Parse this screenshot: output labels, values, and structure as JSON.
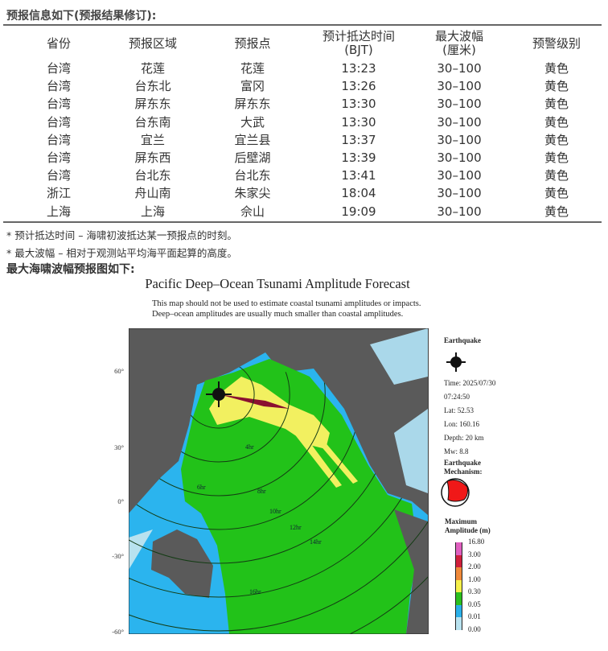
{
  "header": "预报信息如下(预报结果修订):",
  "table": {
    "columns": [
      [
        "省份",
        ""
      ],
      [
        "预报区域",
        ""
      ],
      [
        "预报点",
        ""
      ],
      [
        "预计抵达时间",
        "(BJT)"
      ],
      [
        "最大波幅",
        "(厘米)"
      ],
      [
        "预警级别",
        ""
      ]
    ],
    "rows": [
      [
        "台湾",
        "花莲",
        "花莲",
        "13:23",
        "30–100",
        "黄色"
      ],
      [
        "台湾",
        "台东北",
        "富冈",
        "13:26",
        "30–100",
        "黄色"
      ],
      [
        "台湾",
        "屏东东",
        "屏东东",
        "13:30",
        "30–100",
        "黄色"
      ],
      [
        "台湾",
        "台东南",
        "大武",
        "13:30",
        "30–100",
        "黄色"
      ],
      [
        "台湾",
        "宜兰",
        "宜兰县",
        "13:37",
        "30–100",
        "黄色"
      ],
      [
        "台湾",
        "屏东西",
        "后壁湖",
        "13:39",
        "30–100",
        "黄色"
      ],
      [
        "台湾",
        "台北东",
        "台北东",
        "13:41",
        "30–100",
        "黄色"
      ],
      [
        "浙江",
        "舟山南",
        "朱家尖",
        "18:04",
        "30–100",
        "黄色"
      ],
      [
        "上海",
        "上海",
        "佘山",
        "19:09",
        "30–100",
        "黄色"
      ]
    ]
  },
  "notes": [
    "* 预计抵达时间 – 海啸初波抵达某一预报点的时刻。",
    "* 最大波幅 – 相对于观测站平均海平面起算的高度。"
  ],
  "map_heading": "最大海啸波幅预报图如下:",
  "map": {
    "title": "Pacific Deep–Ocean Tsunami Amplitude Forecast",
    "subtitle": [
      "This map should not be used to estimate coastal tsunami amplitudes or impacts.",
      "Deep–ocean amplitudes are usually much smaller than coastal amplitudes."
    ],
    "lat_labels": [
      "60°",
      "30°",
      "0°",
      "-30°",
      "-60°"
    ],
    "contour_labels": [
      "4hr",
      "6hr",
      "8hr",
      "10hr",
      "12hr",
      "14hr",
      "16hr"
    ],
    "earthquake": {
      "label": "Earthquake",
      "time": "Time: 2025/07/30",
      "clock": "07:24:50",
      "lat": "Lat: 52.53",
      "lon": "Lon: 160.16",
      "depth": "Depth: 20 km",
      "mw": "Mw: 8.8",
      "mechanism": "Earthquake Mechanism:"
    },
    "legend": {
      "title": "Maximum Amplitude (m)",
      "ticks": [
        "16.80",
        "3.00",
        "2.00",
        "1.00",
        "0.30",
        "0.05",
        "0.01",
        "0.00"
      ],
      "colors": [
        "#e060c0",
        "#d0203c",
        "#f08a3a",
        "#f5f04a",
        "#2bbf1e",
        "#2ab0e8",
        "#b8e2ef"
      ]
    },
    "colors": {
      "land": "#5a5a5a",
      "ocean_low": "#2bb4ee",
      "ocean_mid": "#22c219",
      "plume": "#f2f060",
      "atlantic": "#aad8ea"
    }
  }
}
